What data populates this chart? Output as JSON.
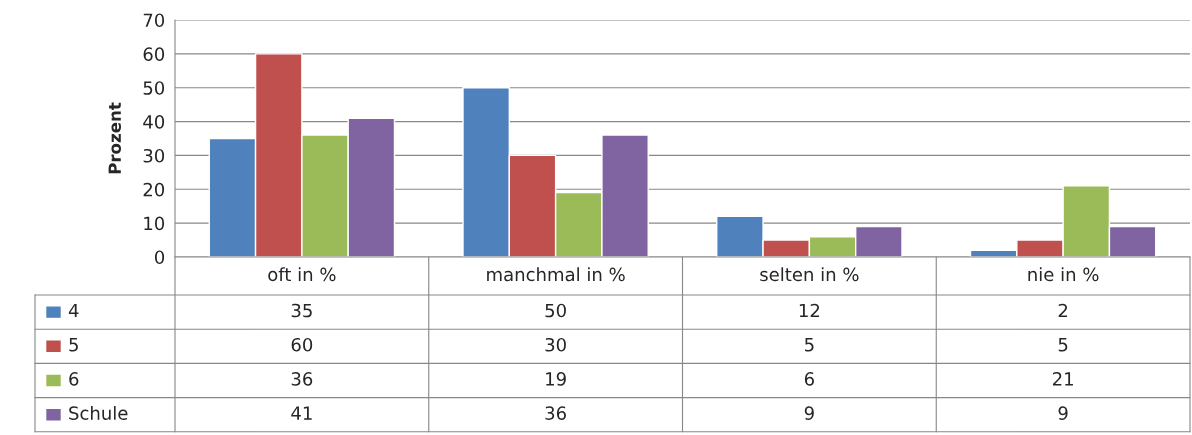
{
  "chart_data": {
    "type": "bar",
    "ylabel": "Prozent",
    "categories": [
      "oft in %",
      "manchmal in %",
      "selten in %",
      "nie in %"
    ],
    "series": [
      {
        "name": "4",
        "color": "#4f81bd",
        "values": [
          35,
          50,
          12,
          2
        ]
      },
      {
        "name": "5",
        "color": "#c0504d",
        "values": [
          60,
          30,
          5,
          5
        ]
      },
      {
        "name": "6",
        "color": "#9bbb59",
        "values": [
          36,
          19,
          6,
          21
        ]
      },
      {
        "name": "Schule",
        "color": "#8064a2",
        "values": [
          41,
          36,
          9,
          9
        ]
      }
    ],
    "ylim": [
      0,
      70
    ],
    "yticks": [
      0,
      10,
      20,
      30,
      40,
      50,
      60,
      70
    ],
    "grid": "y",
    "legend": "bottom",
    "data_labels": true
  }
}
